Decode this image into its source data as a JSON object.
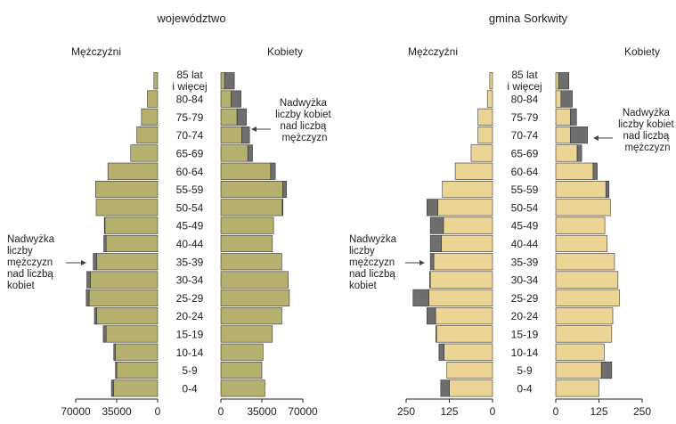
{
  "colors": {
    "voivodeship_fill": "#b5b06e",
    "gmina_fill": "#ead594",
    "surplus_fill": "#6e6e6e",
    "bar_stroke": "#333333",
    "axis": "#222222"
  },
  "chart_data": [
    {
      "type": "bar",
      "orientation": "horizontal",
      "subtype": "population-pyramid",
      "title": "województwo",
      "left_header": "Mężczyźni",
      "right_header": "Kobiety",
      "left_ticks": [
        "70000",
        "35000",
        "0"
      ],
      "right_ticks": [
        "0",
        "35000",
        "70000"
      ],
      "tick_values": [
        0,
        35000,
        70000
      ],
      "xlim": [
        0,
        70000
      ],
      "categories": [
        "0-4",
        "5-9",
        "10-14",
        "15-19",
        "20-24",
        "25-29",
        "30-34",
        "35-39",
        "40-44",
        "45-49",
        "50-54",
        "55-59",
        "60-64",
        "65-69",
        "70-74",
        "75-79",
        "80-84",
        "85 lat i więcej"
      ],
      "series": [
        {
          "name": "Mężczyźni",
          "values": [
            39500,
            36000,
            37500,
            46500,
            54000,
            61000,
            60500,
            55000,
            46000,
            45500,
            52500,
            53000,
            42500,
            23000,
            17800,
            13800,
            8800,
            3200
          ]
        },
        {
          "name": "Kobiety",
          "values": [
            37500,
            35000,
            36000,
            44000,
            52000,
            58500,
            57500,
            52000,
            44000,
            45000,
            53000,
            56000,
            46500,
            27000,
            24500,
            21800,
            17200,
            11500
          ]
        }
      ],
      "annotations": [
        {
          "text": "Nadwyżka liczby kobiet nad liczbą mężczyzn"
        },
        {
          "text": "Nadwyżka liczby mężczyzn nad liczbą kobiet"
        }
      ]
    },
    {
      "type": "bar",
      "orientation": "horizontal",
      "subtype": "population-pyramid",
      "title": "gmina Sorkwity",
      "left_header": "Mężczyźni",
      "right_header": "Kobiety",
      "left_ticks": [
        "250",
        "125",
        "0"
      ],
      "right_ticks": [
        "0",
        "125",
        "250"
      ],
      "tick_values": [
        0,
        125,
        250
      ],
      "xlim": [
        0,
        250
      ],
      "categories": [
        "0-4",
        "5-9",
        "10-14",
        "15-19",
        "20-24",
        "25-29",
        "30-34",
        "35-39",
        "40-44",
        "45-49",
        "50-54",
        "55-59",
        "60-64",
        "65-69",
        "70-74",
        "75-79",
        "80-84",
        "85 lat i więcej"
      ],
      "series": [
        {
          "name": "Mężczyźni",
          "values": [
            150,
            132,
            155,
            164,
            190,
            230,
            182,
            180,
            180,
            180,
            190,
            145,
            108,
            62,
            42,
            42,
            15,
            8
          ]
        },
        {
          "name": "Kobiety",
          "values": [
            125,
            162,
            140,
            162,
            165,
            184,
            180,
            170,
            148,
            142,
            158,
            154,
            120,
            75,
            92,
            60,
            48,
            38
          ]
        }
      ],
      "annotations": [
        {
          "text": "Nadwyżka liczby kobiet nad liczbą mężczyzn"
        },
        {
          "text": "Nadwyżka liczby mężczyzn nad liczbą kobiet"
        }
      ]
    }
  ],
  "age_labels": [
    "0-4",
    "5-9",
    "10-14",
    "15-19",
    "20-24",
    "25-29",
    "30-34",
    "35-39",
    "40-44",
    "45-49",
    "50-54",
    "55-59",
    "60-64",
    "65-69",
    "70-74",
    "75-79",
    "80-84",
    "85 lat",
    "i więcej"
  ]
}
